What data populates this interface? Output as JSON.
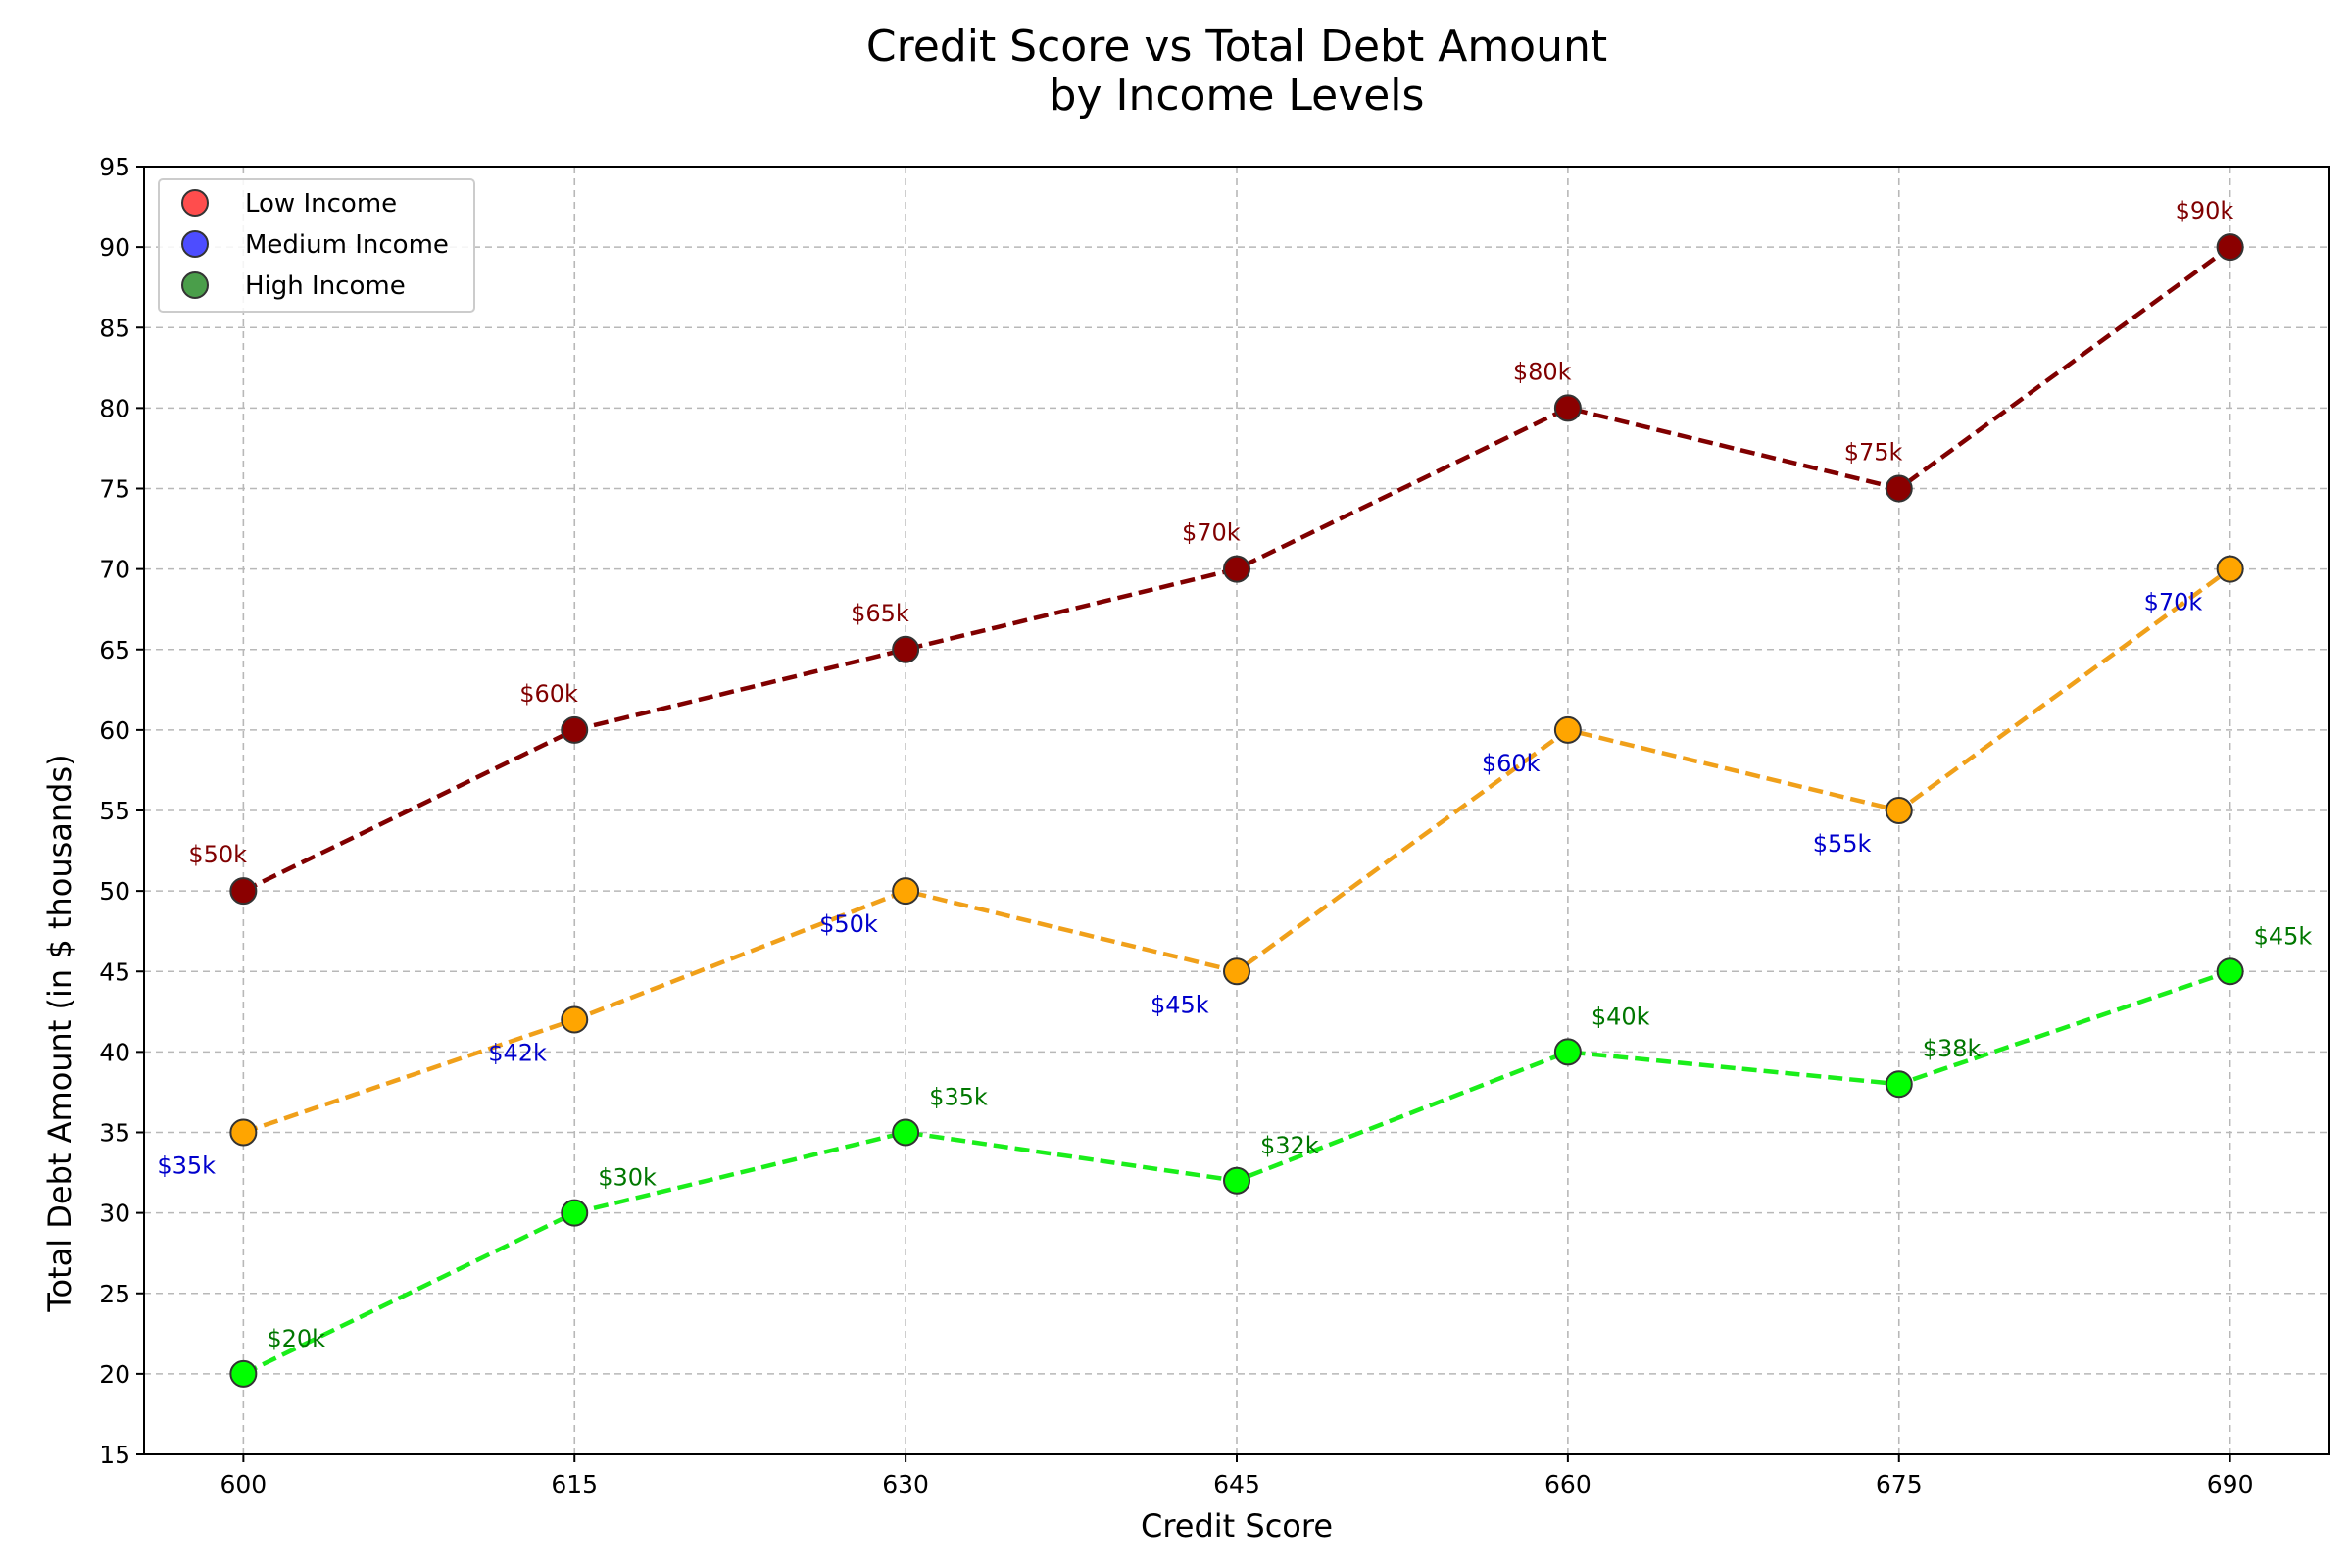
{
  "chart_data": {
    "type": "line",
    "title": "Credit Score vs Total Debt Amount",
    "subtitle": "by Income Levels",
    "xlabel": "Credit Score",
    "ylabel": "Total Debt Amount (in $ thousands)",
    "x": [
      600,
      615,
      630,
      645,
      660,
      675,
      690
    ],
    "x_ticks": [
      "600",
      "615",
      "630",
      "645",
      "660",
      "675",
      "690"
    ],
    "y_ticks": [
      "15",
      "20",
      "25",
      "30",
      "35",
      "40",
      "45",
      "50",
      "55",
      "60",
      "65",
      "70",
      "75",
      "80",
      "85",
      "90",
      "95"
    ],
    "xlim": [
      595.5,
      694.5
    ],
    "ylim": [
      15,
      95
    ],
    "grid": true,
    "legend_position": "top-left",
    "series": [
      {
        "name": "Low Income",
        "legend_color": "#ff4d4d",
        "line_color": "#800000",
        "marker_color": "#8b0000",
        "label_color": "#800000",
        "values": [
          50,
          60,
          65,
          70,
          80,
          75,
          90
        ],
        "labels": [
          "$50k",
          "$60k",
          "$65k",
          "$70k",
          "$80k",
          "$75k",
          "$90k"
        ]
      },
      {
        "name": "Medium Income",
        "legend_color": "#4d4dff",
        "line_color": "#f0a01a",
        "marker_color": "#ffa500",
        "label_color": "#0000cc",
        "values": [
          35,
          42,
          50,
          45,
          60,
          55,
          70
        ],
        "labels": [
          "$35k",
          "$42k",
          "$50k",
          "$45k",
          "$60k",
          "$55k",
          "$70k"
        ]
      },
      {
        "name": "High Income",
        "legend_color": "#4a9e4a",
        "line_color": "#1aee1a",
        "marker_color": "#00ff00",
        "label_color": "#007700",
        "values": [
          20,
          30,
          35,
          32,
          40,
          38,
          45
        ],
        "labels": [
          "$20k",
          "$30k",
          "$35k",
          "$32k",
          "$40k",
          "$38k",
          "$45k"
        ]
      }
    ]
  }
}
